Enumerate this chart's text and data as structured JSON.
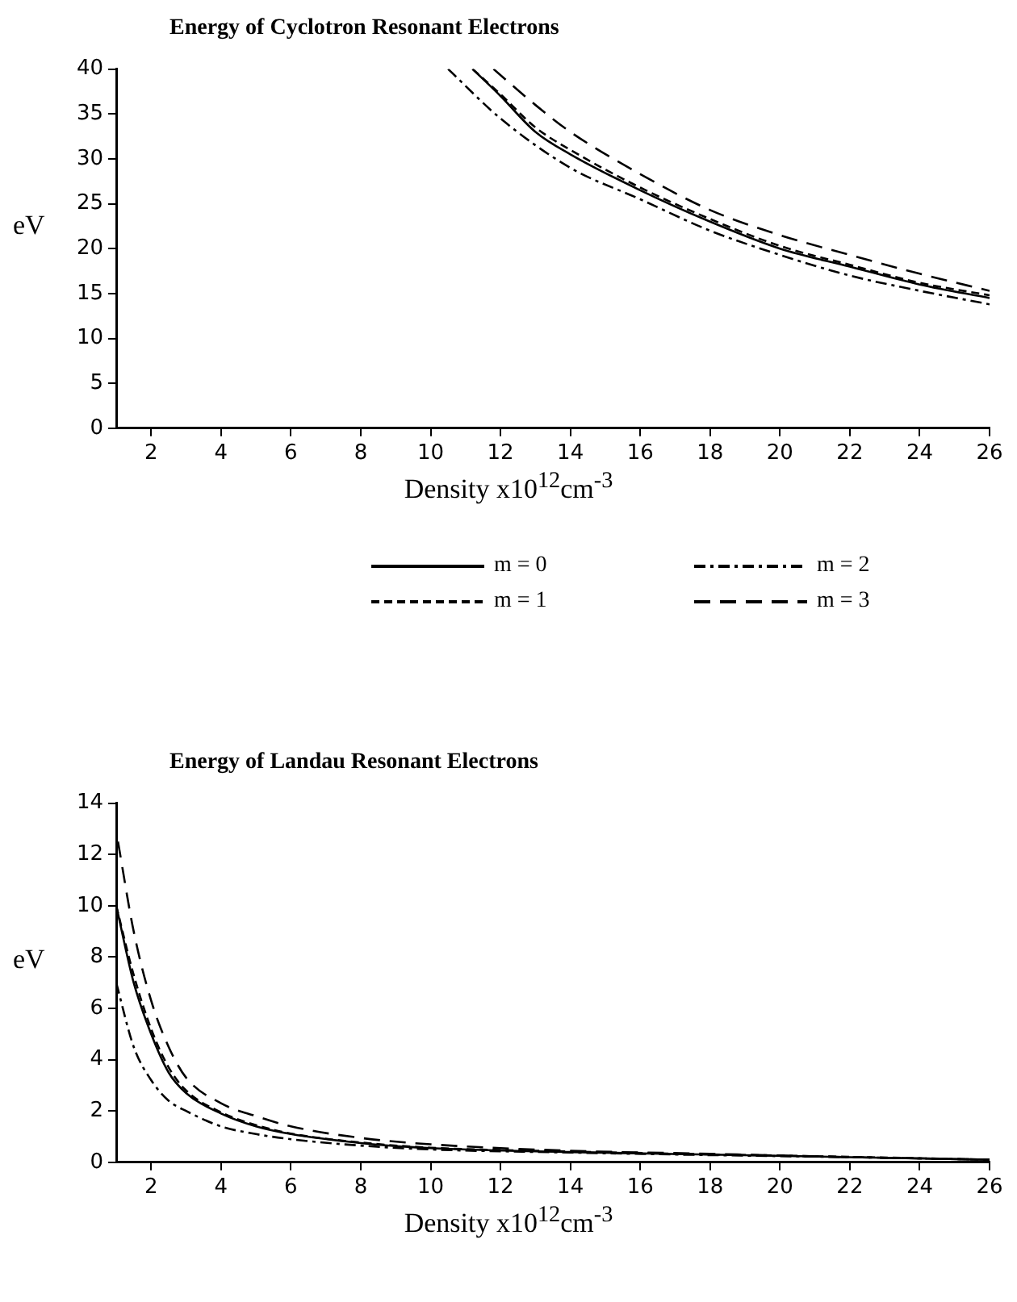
{
  "chart_data": [
    {
      "type": "line",
      "title": "Energy of Cyclotron Resonant Electrons",
      "xlabel": "Density x10$^{12}$cm$^{-3}$",
      "ylabel": "eV",
      "xlim": [
        1,
        26
      ],
      "xticks": [
        2,
        4,
        6,
        8,
        10,
        12,
        14,
        16,
        18,
        20,
        22,
        24,
        26
      ],
      "ylim": [
        0,
        40
      ],
      "yticks": [
        0,
        5,
        10,
        15,
        20,
        25,
        30,
        35,
        40
      ],
      "grid": false,
      "legend": "bottom",
      "marker": "none",
      "series": [
        {
          "name": "m = 0",
          "color": "#000000",
          "line_style": "solid",
          "x": [
            11.2,
            12,
            13,
            14,
            16,
            18,
            20,
            22,
            24,
            26
          ],
          "values": [
            40,
            37,
            33,
            30.5,
            26.5,
            23,
            20,
            18,
            16,
            14.5
          ]
        },
        {
          "name": "m = 1",
          "color": "#000000",
          "line_style": "dashed",
          "x": [
            11.2,
            12,
            13,
            14,
            16,
            18,
            20,
            22,
            24,
            26
          ],
          "values": [
            40,
            37.2,
            33.5,
            31,
            26.8,
            23.3,
            20.3,
            18.2,
            16.2,
            14.8
          ]
        },
        {
          "name": "m = 2",
          "color": "#000000",
          "line_style": "dashdot",
          "x": [
            10.5,
            12,
            14,
            16,
            18,
            20,
            22,
            24,
            26
          ],
          "values": [
            40,
            34.5,
            29,
            25.5,
            22,
            19.3,
            17,
            15.3,
            13.8
          ]
        },
        {
          "name": "m = 3",
          "color": "#000000",
          "line_style": "longdash",
          "x": [
            11.8,
            13,
            14,
            16,
            18,
            20,
            22,
            24,
            26
          ],
          "values": [
            40,
            36,
            33,
            28.3,
            24.3,
            21.5,
            19.3,
            17.2,
            15.3
          ]
        }
      ]
    },
    {
      "type": "line",
      "title": "Energy of Landau Resonant Electrons",
      "xlabel": "Density x10$^{12}$cm$^{-3}$",
      "ylabel": "eV",
      "xlim": [
        1,
        26
      ],
      "xticks": [
        2,
        4,
        6,
        8,
        10,
        12,
        14,
        16,
        18,
        20,
        22,
        24,
        26
      ],
      "ylim": [
        0,
        14
      ],
      "yticks": [
        0,
        2,
        4,
        6,
        8,
        10,
        12,
        14
      ],
      "grid": false,
      "legend": false,
      "marker": "none",
      "series": [
        {
          "color": "#000000",
          "line_style": "solid",
          "x": [
            1,
            1.5,
            2,
            2.5,
            3,
            4,
            5,
            6,
            8,
            10,
            14,
            18,
            22,
            26
          ],
          "values": [
            10,
            7,
            5,
            3.5,
            2.7,
            1.9,
            1.4,
            1.1,
            0.75,
            0.55,
            0.4,
            0.3,
            0.2,
            0.1
          ]
        },
        {
          "color": "#000000",
          "line_style": "dashed",
          "x": [
            1,
            1.5,
            2,
            2.5,
            3,
            4,
            5,
            6,
            8,
            10,
            14,
            18,
            22,
            26
          ],
          "values": [
            10,
            7.3,
            5.2,
            3.7,
            2.8,
            1.95,
            1.45,
            1.12,
            0.77,
            0.57,
            0.42,
            0.31,
            0.21,
            0.1
          ]
        },
        {
          "color": "#000000",
          "line_style": "dashdot",
          "x": [
            1,
            1.5,
            2,
            2.5,
            3,
            4,
            5,
            6,
            8,
            10,
            14,
            18,
            22,
            26
          ],
          "values": [
            7,
            4.5,
            3.2,
            2.4,
            2,
            1.4,
            1.1,
            0.9,
            0.65,
            0.5,
            0.38,
            0.28,
            0.2,
            0.1
          ]
        },
        {
          "color": "#000000",
          "line_style": "longdash",
          "x": [
            1.05,
            1.5,
            2,
            2.5,
            3,
            4,
            5,
            6,
            8,
            10,
            14,
            18,
            22,
            26
          ],
          "values": [
            12.5,
            9,
            6.3,
            4.5,
            3.3,
            2.3,
            1.8,
            1.4,
            0.95,
            0.7,
            0.45,
            0.33,
            0.2,
            0.1
          ]
        }
      ]
    }
  ]
}
